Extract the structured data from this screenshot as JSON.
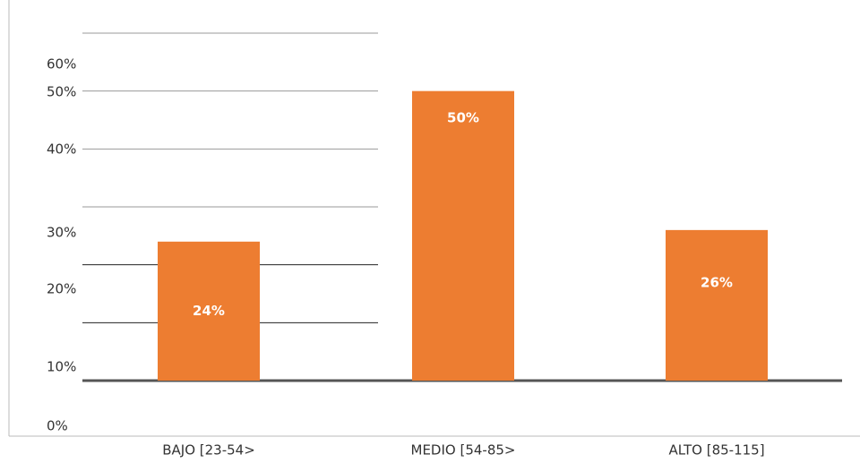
{
  "chart_data": {
    "type": "bar",
    "categories": [
      "BAJO [23-54>",
      "MEDIO [54-85>",
      "ALTO [85-115]"
    ],
    "values": [
      24,
      50,
      26
    ],
    "value_labels": [
      "24%",
      "50%",
      "26%"
    ],
    "color": "#ed7d31",
    "ylim": [
      0,
      60
    ],
    "yticks": [
      {
        "value": 0,
        "label": "0%"
      },
      {
        "value": 10,
        "label": "10%"
      },
      {
        "value": 20,
        "label": "20%"
      },
      {
        "value": 30,
        "label": "30%"
      },
      {
        "value": 40,
        "label": "40%"
      },
      {
        "value": 50,
        "label": "50%"
      },
      {
        "value": 60,
        "label": "60%"
      }
    ],
    "grid": true
  }
}
